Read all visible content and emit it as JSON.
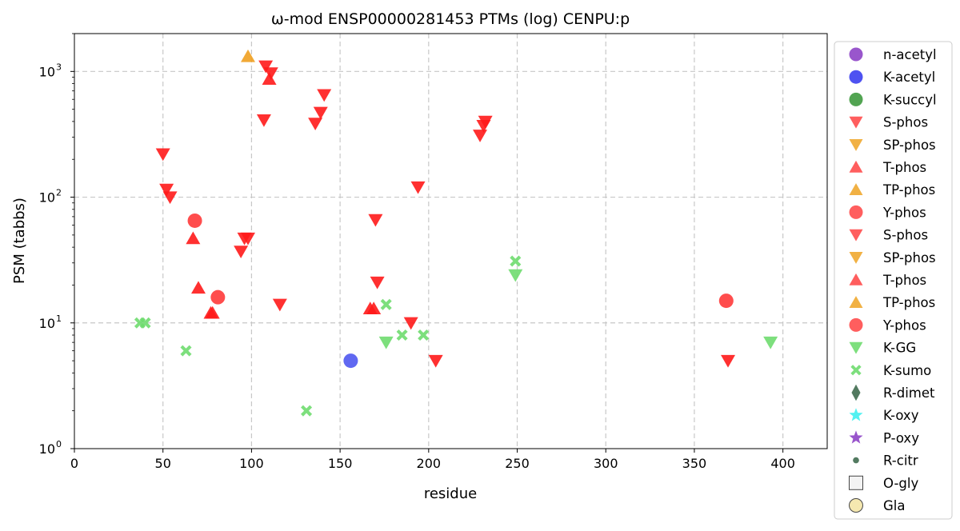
{
  "chart_data": {
    "type": "scatter",
    "title": "ω-mod ENSP00000281453 PTMs (log) CENPU:p",
    "xlabel": "residue",
    "ylabel": "PSM (tabbs)",
    "xlim": [
      0,
      425
    ],
    "ylim": [
      1,
      2000
    ],
    "y_scale": "log",
    "grid": true,
    "legend_position": "outside-right",
    "x_ticks": [
      "0",
      "50",
      "100",
      "150",
      "200",
      "250",
      "300",
      "350",
      "400"
    ],
    "x_tick_values": [
      0,
      50,
      100,
      150,
      200,
      250,
      300,
      350,
      400
    ],
    "y_ticks": [
      {
        "value": 1,
        "base": "10",
        "exp": "0"
      },
      {
        "value": 10,
        "base": "10",
        "exp": "1"
      },
      {
        "value": 100,
        "base": "10",
        "exp": "2"
      },
      {
        "value": 1000,
        "base": "10",
        "exp": "3"
      }
    ],
    "legend": [
      {
        "label": "n-acetyl",
        "marker": "circle",
        "color": "#8e44c6"
      },
      {
        "label": "K-acetyl",
        "marker": "circle",
        "color": "#3b3ff0"
      },
      {
        "label": "K-succyl",
        "marker": "circle",
        "color": "#3f9a3f"
      },
      {
        "label": "S-phos",
        "marker": "triangle-down",
        "color": "#ff4d4d"
      },
      {
        "label": "SP-phos",
        "marker": "triangle-down",
        "color": "#f0a830"
      },
      {
        "label": "T-phos",
        "marker": "triangle-up",
        "color": "#ff4d4d"
      },
      {
        "label": "TP-phos",
        "marker": "triangle-up",
        "color": "#f0a830"
      },
      {
        "label": "Y-phos",
        "marker": "circle",
        "color": "#ff4d4d"
      },
      {
        "label": "S-phos",
        "marker": "triangle-down",
        "color": "#ff4d4d"
      },
      {
        "label": "SP-phos",
        "marker": "triangle-down",
        "color": "#f0a830"
      },
      {
        "label": "T-phos",
        "marker": "triangle-up",
        "color": "#ff4d4d"
      },
      {
        "label": "TP-phos",
        "marker": "triangle-up",
        "color": "#f0a830"
      },
      {
        "label": "Y-phos",
        "marker": "circle",
        "color": "#ff4d4d"
      },
      {
        "label": "K-GG",
        "marker": "triangle-down",
        "color": "#6fdc6f"
      },
      {
        "label": "K-sumo",
        "marker": "x",
        "color": "#6fdc6f"
      },
      {
        "label": "R-dimet",
        "marker": "diamond",
        "color": "#3f6b4f"
      },
      {
        "label": "K-oxy",
        "marker": "star",
        "color": "#3ff0f0"
      },
      {
        "label": "P-oxy",
        "marker": "star",
        "color": "#8e44c6"
      },
      {
        "label": "R-citr",
        "marker": "small-circle",
        "color": "#3f6b4f"
      },
      {
        "label": "O-gly",
        "marker": "square",
        "color": "#f2f2f2"
      },
      {
        "label": "Gla",
        "marker": "circle-outline",
        "color": "#f5e6a8"
      }
    ],
    "series": [
      {
        "name": "S-phos",
        "marker": "triangle-down",
        "color": "#ff1a1a",
        "points": [
          [
            50,
            220
          ],
          [
            52,
            115
          ],
          [
            54,
            100
          ],
          [
            94,
            37
          ],
          [
            96,
            47
          ],
          [
            98,
            47
          ],
          [
            107,
            410
          ],
          [
            108,
            1100
          ],
          [
            111,
            970
          ],
          [
            116,
            14
          ],
          [
            136,
            385
          ],
          [
            139,
            470
          ],
          [
            141,
            650
          ],
          [
            170,
            66
          ],
          [
            171,
            21
          ],
          [
            190,
            10
          ],
          [
            194,
            120
          ],
          [
            204,
            5
          ],
          [
            229,
            310
          ],
          [
            231,
            370
          ],
          [
            232,
            400
          ],
          [
            369,
            5
          ]
        ]
      },
      {
        "name": "T-phos",
        "marker": "triangle-up",
        "color": "#ff1a1a",
        "points": [
          [
            67,
            47
          ],
          [
            70,
            19
          ],
          [
            77,
            12
          ],
          [
            78,
            12
          ],
          [
            110,
            870
          ],
          [
            167,
            13
          ],
          [
            169,
            13
          ]
        ]
      },
      {
        "name": "TP-phos",
        "marker": "triangle-up",
        "color": "#f0a020",
        "points": [
          [
            98,
            1320
          ]
        ]
      },
      {
        "name": "Y-phos",
        "marker": "circle",
        "color": "#ff3a3a",
        "points": [
          [
            68,
            65
          ],
          [
            81,
            16
          ],
          [
            368,
            15
          ]
        ]
      },
      {
        "name": "K-acetyl",
        "marker": "circle",
        "color": "#4f58f0",
        "points": [
          [
            156,
            5
          ]
        ]
      },
      {
        "name": "K-GG",
        "marker": "triangle-down",
        "color": "#6fdc6f",
        "points": [
          [
            176,
            7
          ],
          [
            249,
            24
          ],
          [
            393,
            7
          ]
        ]
      },
      {
        "name": "K-sumo",
        "marker": "x",
        "color": "#6fdc6f",
        "points": [
          [
            37,
            10
          ],
          [
            40,
            10
          ],
          [
            63,
            6
          ],
          [
            131,
            2
          ],
          [
            176,
            14
          ],
          [
            185,
            8
          ],
          [
            197,
            8
          ],
          [
            249,
            31
          ]
        ]
      }
    ]
  }
}
